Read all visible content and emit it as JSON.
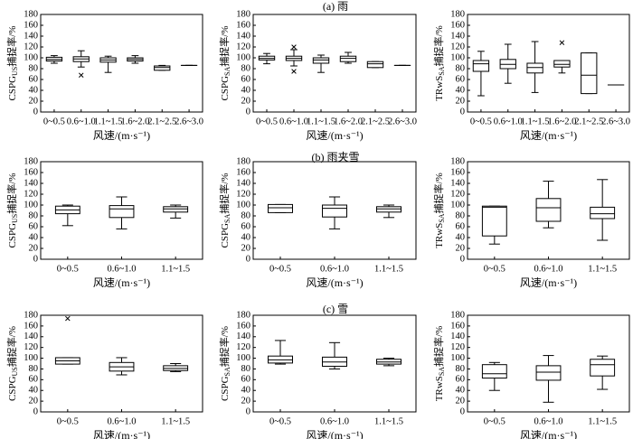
{
  "figure": {
    "row_titles": [
      "(a) 雨",
      "(b) 雨夹雪",
      "(c) 雪"
    ],
    "y_ticks": [
      0,
      20,
      40,
      60,
      80,
      100,
      120,
      140,
      160,
      180
    ]
  },
  "chart_data": [
    {
      "type": "box",
      "row": 0,
      "col": 0,
      "title": "",
      "ylabel": {
        "main": "CSPG",
        "sub": "US",
        "suffix": "捕捉率/%"
      },
      "xlabel": "风速/(m·s⁻¹)",
      "ylim": [
        0,
        180
      ],
      "categories": [
        "0~0.5",
        "0.6~1.0",
        "1.1~1.5",
        "1.6~2.0",
        "2.1~2.5",
        "2.6~3.0"
      ],
      "boxes": [
        {
          "whislo": 90,
          "q1": 94,
          "med": 97,
          "q3": 101,
          "whishi": 104,
          "fliers": []
        },
        {
          "whislo": 83,
          "q1": 93,
          "med": 98,
          "q3": 102,
          "whishi": 113,
          "fliers": [
            68
          ]
        },
        {
          "whislo": 73,
          "q1": 92,
          "med": 96,
          "q3": 100,
          "whishi": 103,
          "fliers": []
        },
        {
          "whislo": 90,
          "q1": 94,
          "med": 97,
          "q3": 100,
          "whishi": 104,
          "fliers": []
        },
        {
          "whislo": 77,
          "q1": 77,
          "med": 82,
          "q3": 85,
          "whishi": 86,
          "fliers": []
        },
        {
          "whislo": 86,
          "q1": 86,
          "med": 86,
          "q3": 86,
          "whishi": 86,
          "fliers": []
        }
      ]
    },
    {
      "type": "box",
      "row": 0,
      "col": 1,
      "title": "",
      "ylabel": {
        "main": "CSPG",
        "sub": "SA",
        "suffix": "捕捉率/%"
      },
      "xlabel": "风速/(m·s⁻¹)",
      "ylim": [
        0,
        180
      ],
      "categories": [
        "0~0.5",
        "0.6~1.0",
        "1.1~1.5",
        "1.6~2.0",
        "2.1~2.5",
        "2.6~3.0"
      ],
      "boxes": [
        {
          "whislo": 89,
          "q1": 96,
          "med": 99,
          "q3": 103,
          "whishi": 108,
          "fliers": []
        },
        {
          "whislo": 85,
          "q1": 95,
          "med": 99,
          "q3": 103,
          "whishi": 115,
          "fliers": [
            75,
            120
          ]
        },
        {
          "whislo": 73,
          "q1": 90,
          "med": 96,
          "q3": 100,
          "whishi": 105,
          "fliers": []
        },
        {
          "whislo": 90,
          "q1": 93,
          "med": 99,
          "q3": 103,
          "whishi": 110,
          "fliers": []
        },
        {
          "whislo": 82,
          "q1": 82,
          "med": 89,
          "q3": 93,
          "whishi": 93,
          "fliers": []
        },
        {
          "whislo": 86,
          "q1": 86,
          "med": 86,
          "q3": 86,
          "whishi": 86,
          "fliers": []
        }
      ]
    },
    {
      "type": "box",
      "row": 0,
      "col": 2,
      "title": "",
      "ylabel": {
        "main": "TRwS",
        "sub": "SA",
        "suffix": "捕捉率/%"
      },
      "xlabel": "风速/(m·s⁻¹)",
      "ylim": [
        0,
        180
      ],
      "categories": [
        "0~0.5",
        "0.6~1.0",
        "1.1~1.5",
        "1.6~2.0",
        "2.1~2.5",
        "2.6~3.0"
      ],
      "boxes": [
        {
          "whislo": 30,
          "q1": 75,
          "med": 89,
          "q3": 95,
          "whishi": 112,
          "fliers": []
        },
        {
          "whislo": 53,
          "q1": 80,
          "med": 88,
          "q3": 97,
          "whishi": 125,
          "fliers": []
        },
        {
          "whislo": 36,
          "q1": 72,
          "med": 82,
          "q3": 90,
          "whishi": 130,
          "fliers": []
        },
        {
          "whislo": 72,
          "q1": 83,
          "med": 88,
          "q3": 95,
          "whishi": 95,
          "fliers": [
            128
          ]
        },
        {
          "whislo": 34,
          "q1": 34,
          "med": 68,
          "q3": 109,
          "whishi": 109,
          "fliers": []
        },
        {
          "whislo": 50,
          "q1": 50,
          "med": 50,
          "q3": 50,
          "whishi": 50,
          "fliers": []
        }
      ]
    },
    {
      "type": "box",
      "row": 1,
      "col": 0,
      "title": "",
      "ylabel": {
        "main": "CSPG",
        "sub": "US",
        "suffix": "捕捉率/%"
      },
      "xlabel": "风速/(m·s⁻¹)",
      "ylim": [
        0,
        180
      ],
      "categories": [
        "0~0.5",
        "0.6~1.0",
        "1.1~1.5"
      ],
      "boxes": [
        {
          "whislo": 62,
          "q1": 84,
          "med": 91,
          "q3": 98,
          "whishi": 100,
          "fliers": []
        },
        {
          "whislo": 56,
          "q1": 77,
          "med": 93,
          "q3": 99,
          "whishi": 115,
          "fliers": []
        },
        {
          "whislo": 76,
          "q1": 87,
          "med": 93,
          "q3": 97,
          "whishi": 100,
          "fliers": []
        }
      ]
    },
    {
      "type": "box",
      "row": 1,
      "col": 1,
      "title": "",
      "ylabel": {
        "main": "CSPG",
        "sub": "SA",
        "suffix": "捕捉率/%"
      },
      "xlabel": "风速/(m·s⁻¹)",
      "ylim": [
        0,
        180
      ],
      "categories": [
        "0~0.5",
        "0.6~1.0",
        "1.1~1.5"
      ],
      "boxes": [
        {
          "whislo": 86,
          "q1": 86,
          "med": 95,
          "q3": 101,
          "whishi": 101,
          "fliers": []
        },
        {
          "whislo": 56,
          "q1": 78,
          "med": 94,
          "q3": 100,
          "whishi": 115,
          "fliers": []
        },
        {
          "whislo": 77,
          "q1": 87,
          "med": 93,
          "q3": 97,
          "whishi": 100,
          "fliers": []
        }
      ]
    },
    {
      "type": "box",
      "row": 1,
      "col": 2,
      "title": "",
      "ylabel": {
        "main": "TRwS",
        "sub": "SA",
        "suffix": "捕捉率/%"
      },
      "xlabel": "风速/(m·s⁻¹)",
      "ylim": [
        0,
        180
      ],
      "categories": [
        "0~0.5",
        "0.6~1.0",
        "1.1~1.5"
      ],
      "boxes": [
        {
          "whislo": 28,
          "q1": 43,
          "med": 96,
          "q3": 98,
          "whishi": 98,
          "fliers": []
        },
        {
          "whislo": 58,
          "q1": 70,
          "med": 95,
          "q3": 112,
          "whishi": 144,
          "fliers": []
        },
        {
          "whislo": 35,
          "q1": 75,
          "med": 84,
          "q3": 96,
          "whishi": 147,
          "fliers": []
        }
      ]
    },
    {
      "type": "box",
      "row": 2,
      "col": 0,
      "title": "",
      "ylabel": {
        "main": "CSPG",
        "sub": "US",
        "suffix": "捕捉率/%"
      },
      "xlabel": "风速/(m·s⁻¹)",
      "ylim": [
        0,
        180
      ],
      "categories": [
        "0~0.5",
        "0.6~1.0",
        "1.1~1.5"
      ],
      "boxes": [
        {
          "whislo": 89,
          "q1": 89,
          "med": 95,
          "q3": 101,
          "whishi": 101,
          "fliers": [
            174
          ]
        },
        {
          "whislo": 69,
          "q1": 76,
          "med": 84,
          "q3": 92,
          "whishi": 101,
          "fliers": []
        },
        {
          "whislo": 75,
          "q1": 77,
          "med": 81,
          "q3": 86,
          "whishi": 90,
          "fliers": []
        }
      ]
    },
    {
      "type": "box",
      "row": 2,
      "col": 1,
      "title": "",
      "ylabel": {
        "main": "CSPG",
        "sub": "SA",
        "suffix": "捕捉率/%"
      },
      "xlabel": "风速/(m·s⁻¹)",
      "ylim": [
        0,
        180
      ],
      "categories": [
        "0~0.5",
        "0.6~1.0",
        "1.1~1.5"
      ],
      "boxes": [
        {
          "whislo": 89,
          "q1": 91,
          "med": 97,
          "q3": 104,
          "whishi": 133,
          "fliers": []
        },
        {
          "whislo": 80,
          "q1": 85,
          "med": 93,
          "q3": 102,
          "whishi": 129,
          "fliers": []
        },
        {
          "whislo": 86,
          "q1": 89,
          "med": 93,
          "q3": 98,
          "whishi": 100,
          "fliers": []
        }
      ]
    },
    {
      "type": "box",
      "row": 2,
      "col": 2,
      "title": "",
      "ylabel": {
        "main": "TRwS",
        "sub": "SA",
        "suffix": "捕捉率/%"
      },
      "xlabel": "风速/(m·s⁻¹)",
      "ylim": [
        0,
        180
      ],
      "categories": [
        "0~0.5",
        "0.6~1.0",
        "1.1~1.5"
      ],
      "boxes": [
        {
          "whislo": 40,
          "q1": 63,
          "med": 71,
          "q3": 88,
          "whishi": 92,
          "fliers": []
        },
        {
          "whislo": 18,
          "q1": 59,
          "med": 74,
          "q3": 86,
          "whishi": 105,
          "fliers": []
        },
        {
          "whislo": 42,
          "q1": 67,
          "med": 88,
          "q3": 98,
          "whishi": 104,
          "fliers": []
        }
      ]
    }
  ]
}
